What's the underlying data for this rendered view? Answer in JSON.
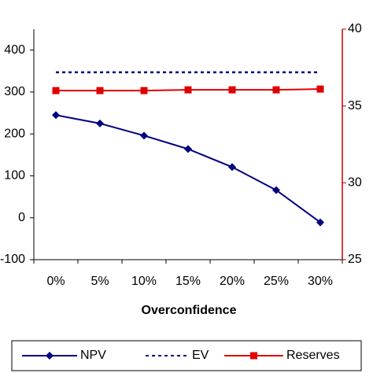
{
  "chart_data": {
    "type": "line",
    "xlabel": "Overconfidence",
    "categories": [
      "0%",
      "5%",
      "10%",
      "15%",
      "20%",
      "25%",
      "30%"
    ],
    "series": [
      {
        "name": "NPV",
        "color": "#000080",
        "style": "solid",
        "marker": "diamond",
        "axis": "y",
        "values": [
          245,
          225,
          196,
          164,
          121,
          66,
          -11
        ]
      },
      {
        "name": "EV",
        "color": "#000080",
        "style": "dotted",
        "marker": "none",
        "axis": "y",
        "values": [
          347,
          347,
          347,
          347,
          347,
          347,
          347
        ]
      },
      {
        "name": "Reserves",
        "color": "#e00000",
        "style": "solid",
        "marker": "square",
        "axis": "y2",
        "values": [
          36.0,
          36.0,
          36.0,
          36.05,
          36.05,
          36.05,
          36.1
        ]
      }
    ],
    "ylim": [
      -100,
      450
    ],
    "yticks": [
      -100,
      0,
      100,
      200,
      300,
      400
    ],
    "y2lim": [
      25,
      40
    ],
    "y2ticks": [
      25,
      30,
      35,
      40
    ],
    "legend": "bottom"
  }
}
